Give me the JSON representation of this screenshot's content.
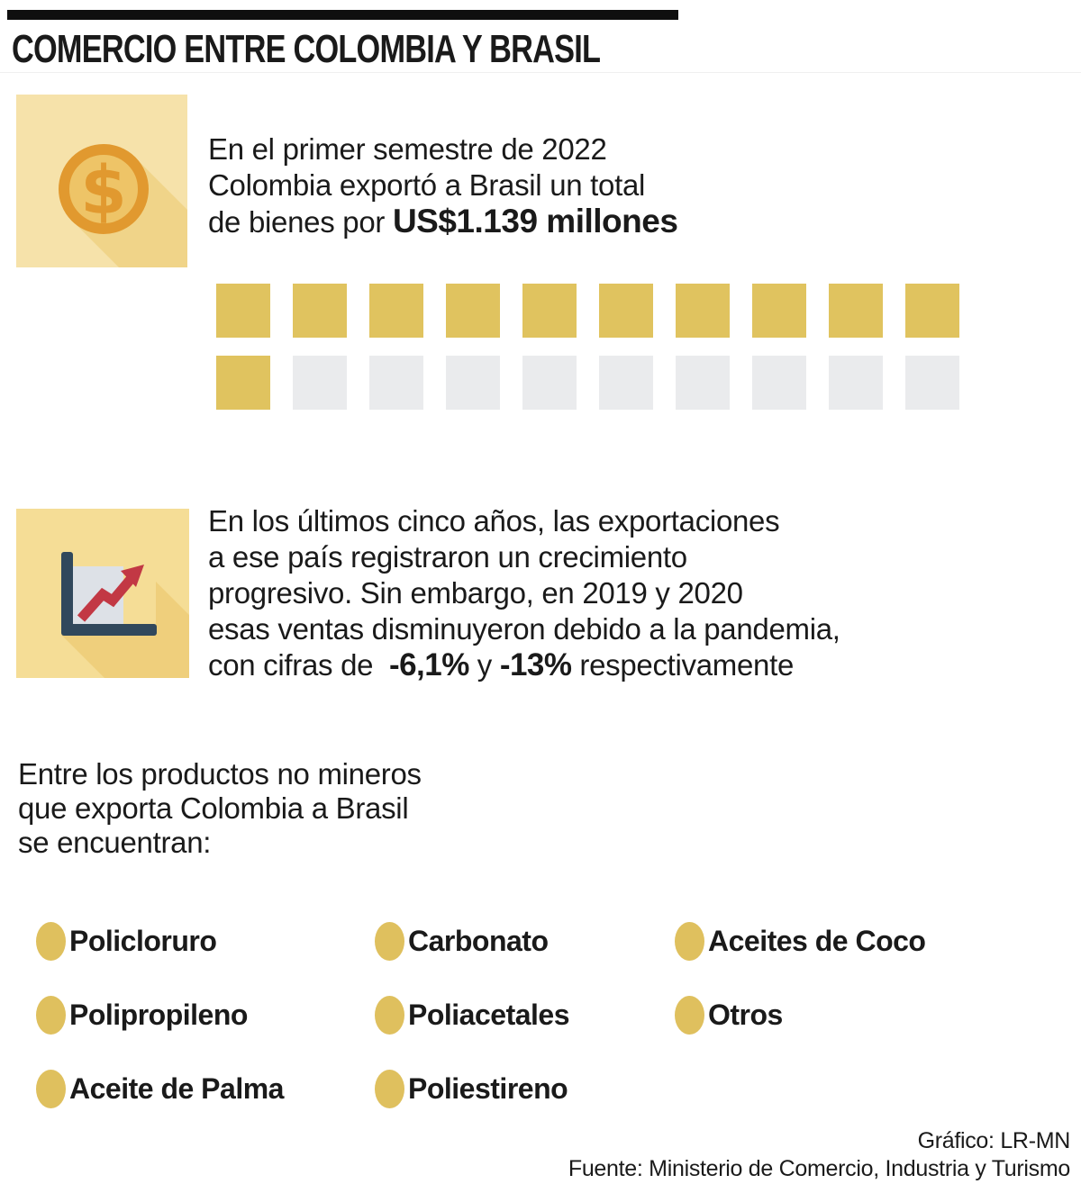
{
  "header": {
    "title": "COMERCIO ENTRE COLOMBIA Y BRASIL"
  },
  "colors": {
    "page_bg": "#FFFFFF",
    "bar_black": "#0F0F0F",
    "text": "#1A1A1A",
    "divider": "#EFEFEF",
    "icon1_bg": "#F6E2AA",
    "icon1_shadow": "#F0D489",
    "coin_ring": "#E1992F",
    "coin_fill": "#EEC467",
    "icon2_bg": "#F5DD96",
    "icon2_shadow": "#EFCF7C",
    "chart_navy": "#31485C",
    "chart_panel": "#DDE1E7",
    "arrow_red": "#C23844",
    "bullet": "#DFC05E"
  },
  "intro": {
    "lines": [
      "En el primer semestre de 2022",
      "Colombia exportó a Brasil un total"
    ],
    "line3_prefix": "de bienes por ",
    "line3_bold": "US$1.139 millones"
  },
  "chart_data": {
    "type": "waffle",
    "rows": 2,
    "cols": 10,
    "total_cells": 20,
    "filled_cells": 11,
    "filled_color": "#E0C35F",
    "empty_color": "#EAEBED",
    "title": "En el primer semestre de 2022 Colombia exportó a Brasil un total de bienes por US$1.139 millones"
  },
  "growth": {
    "lines": [
      "En los últimos cinco años, las exportaciones",
      "a ese país registraron un crecimiento",
      "progresivo. Sin embargo, en 2019 y 2020",
      "esas ventas disminuyeron debido a la pandemia,"
    ],
    "line5_prefix": "con cifras de  ",
    "line5_bold1": "-6,1%",
    "line5_mid": " y ",
    "line5_bold2": "-13%",
    "line5_suffix": " respectivamente"
  },
  "products": {
    "heading_lines": [
      "Entre los productos no mineros",
      "que exporta Colombia a Brasil",
      "se encuentran:"
    ],
    "items": [
      "Policloruro",
      "Carbonato",
      "Aceites de Coco",
      "Polipropileno",
      "Poliacetales",
      "Otros",
      "Aceite de Palma",
      "Poliestireno"
    ]
  },
  "footer": {
    "credit": "Gráfico: LR-MN",
    "source": "Fuente: Ministerio de Comercio, Industria y Turismo"
  }
}
